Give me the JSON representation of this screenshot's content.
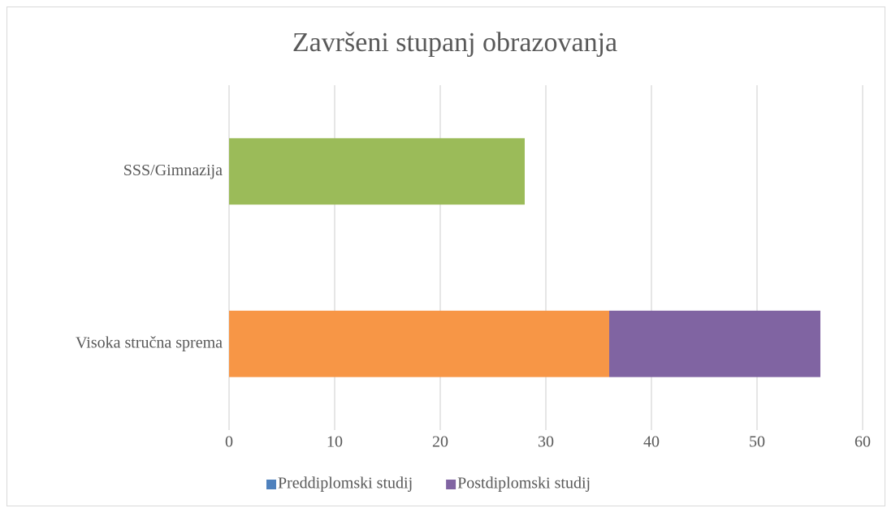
{
  "chart_data": {
    "type": "stacked_barh",
    "title": "Završeni stupanj obrazovanja",
    "categories": [
      "SSS/Gimnazija",
      "Visoka stručna sprema"
    ],
    "series": [
      {
        "name": "Preddiplomski studij",
        "color": "#4f81bd",
        "point_colors": [
          "#9bbb59",
          "#f79646"
        ],
        "values": [
          28,
          36
        ]
      },
      {
        "name": "Postdiplomski studij",
        "color": "#8064a2",
        "values": [
          null,
          20
        ]
      }
    ],
    "xlim": [
      0,
      60
    ],
    "xticks": [
      0,
      10,
      20,
      30,
      40,
      50,
      60
    ],
    "grid": true,
    "legend": "bottom"
  }
}
